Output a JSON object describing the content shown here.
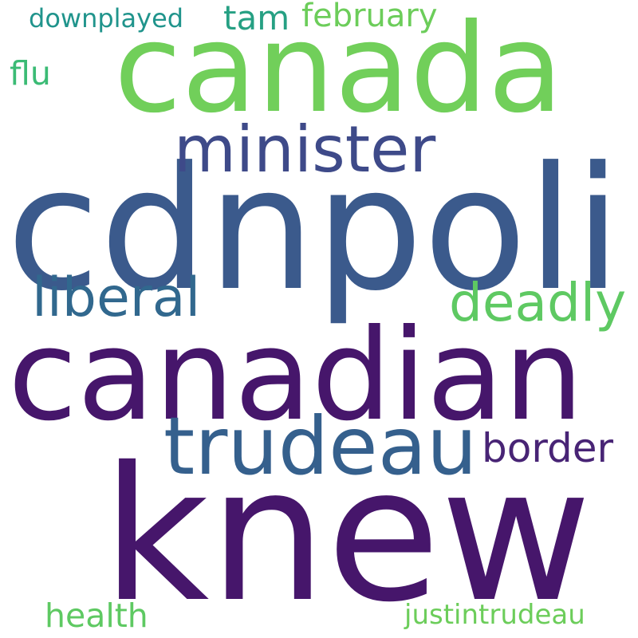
{
  "words": [
    {
      "id": "knew",
      "text": "knew",
      "color": "#46166b"
    },
    {
      "id": "cdnpoli",
      "text": "cdnpoli",
      "color": "#3b5a8c"
    },
    {
      "id": "canadian",
      "text": "canadian",
      "color": "#46166b"
    },
    {
      "id": "canada",
      "text": "canada",
      "color": "#71cf5a"
    },
    {
      "id": "trudeau",
      "text": "trudeau",
      "color": "#35608d"
    },
    {
      "id": "minister",
      "text": "minister",
      "color": "#3e4a89"
    },
    {
      "id": "liberal",
      "text": "liberal",
      "color": "#31688e"
    },
    {
      "id": "deadly",
      "text": "deadly",
      "color": "#5ec962"
    },
    {
      "id": "border",
      "text": "border",
      "color": "#482475"
    },
    {
      "id": "tam",
      "text": "tam",
      "color": "#26a083"
    },
    {
      "id": "february",
      "text": "february",
      "color": "#6ccd5a"
    },
    {
      "id": "downplayed",
      "text": "downplayed",
      "color": "#20948c"
    },
    {
      "id": "flu",
      "text": "flu",
      "color": "#3bbb75"
    },
    {
      "id": "health",
      "text": "health",
      "color": "#5ec962"
    },
    {
      "id": "justintrudeau",
      "text": "justintrudeau",
      "color": "#6ccd5a"
    }
  ]
}
